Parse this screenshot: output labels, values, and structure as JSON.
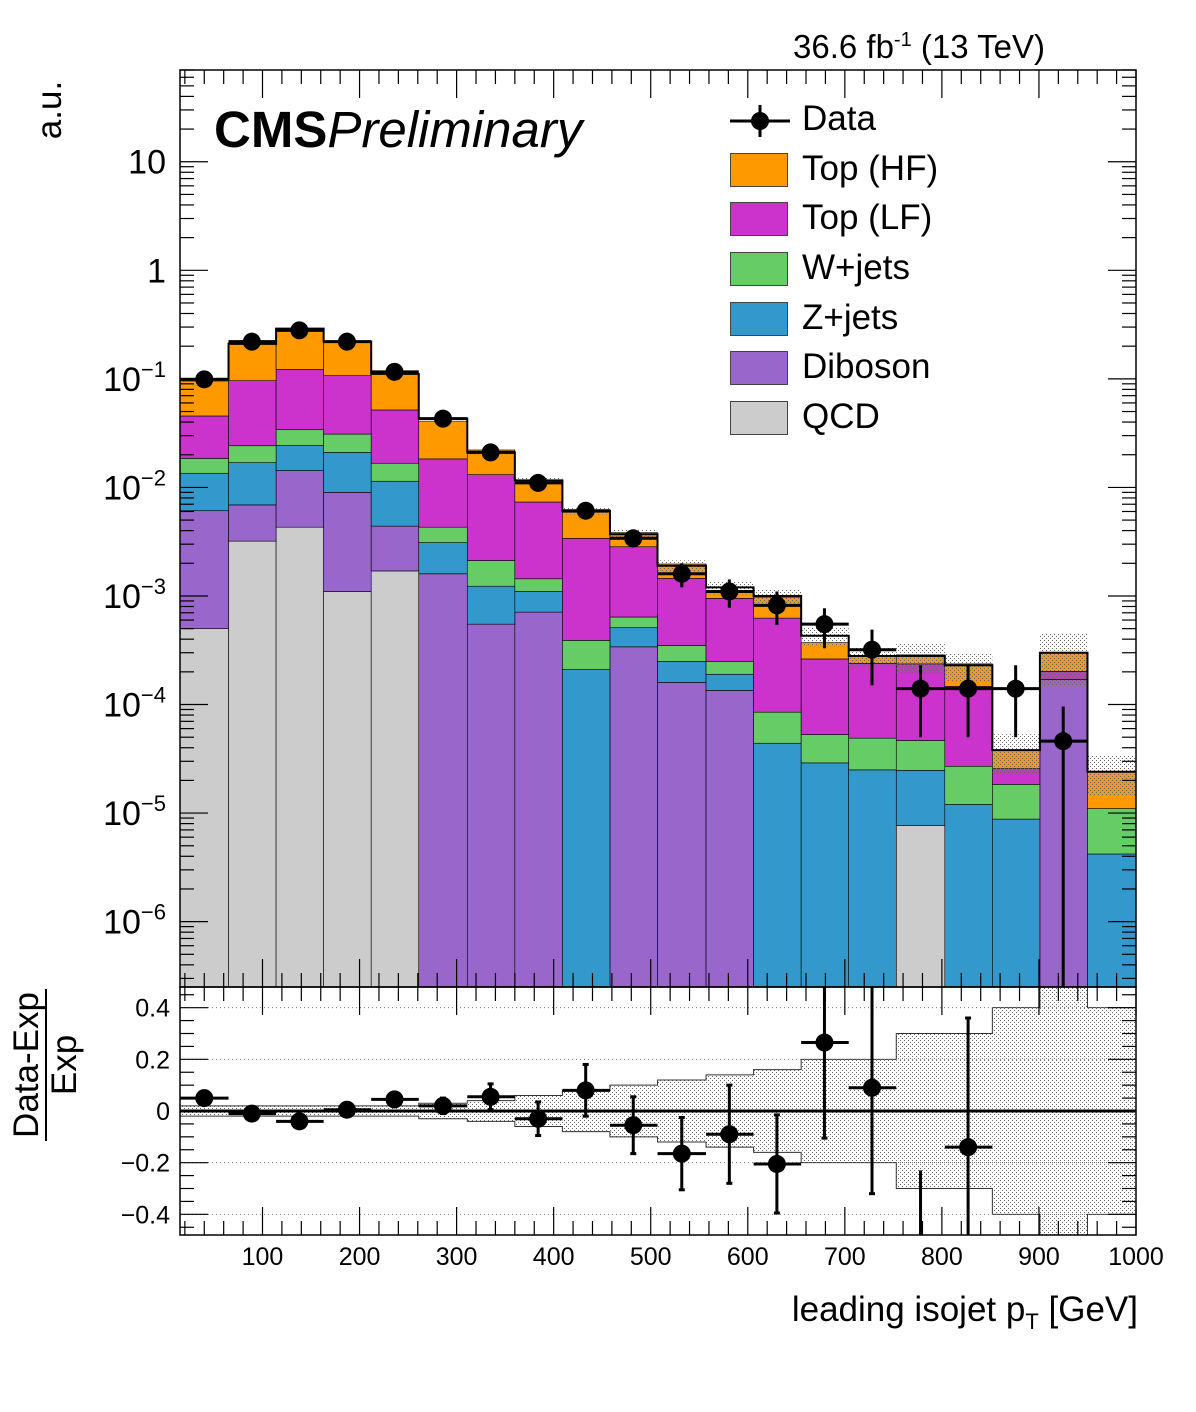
{
  "header": {
    "lumi_value": "36.6 fb",
    "lumi_exp": "-1",
    "lumi_energy": " (13 TeV)",
    "cms_bold": "CMS",
    "cms_italic": "Preliminary"
  },
  "axes": {
    "ylabel_top": "a.u.",
    "ylabel_ratio_num": "Data-Exp",
    "ylabel_ratio_den": "Exp",
    "xlabel_main": "leading isojet p",
    "xlabel_sub": "T",
    "xlabel_unit": " [GeV]"
  },
  "legend": [
    {
      "label": "Data",
      "kind": "data"
    },
    {
      "label": "Top (HF)",
      "kind": "fill",
      "color": "#ff9900"
    },
    {
      "label": "Top (LF)",
      "kind": "fill",
      "color": "#cc33cc"
    },
    {
      "label": "W+jets",
      "kind": "fill",
      "color": "#66cc66"
    },
    {
      "label": "Z+jets",
      "kind": "fill",
      "color": "#3399cc"
    },
    {
      "label": "Diboson",
      "kind": "fill",
      "color": "#9966cc"
    },
    {
      "label": "QCD",
      "kind": "fill",
      "color": "#cccccc"
    }
  ],
  "chart_data": [
    {
      "type": "bar",
      "stacked": true,
      "log_y": true,
      "xlim": [
        15,
        1000
      ],
      "ylim": [
        2.5e-07,
        70
      ],
      "x_edges": [
        15,
        65,
        114,
        163,
        212,
        261,
        311,
        360,
        409,
        458,
        507,
        557,
        606,
        655,
        704,
        753,
        803,
        852,
        901,
        950,
        1000
      ],
      "ytick_labels": [
        "10",
        "1",
        "10^{-1}",
        "10^{-2}",
        "10^{-3}",
        "10^{-4}",
        "10^{-5}",
        "10^{-6}"
      ],
      "ytick_values": [
        10,
        1,
        0.1,
        0.01,
        0.001,
        0.0001,
        1e-05,
        1e-06
      ],
      "series": [
        {
          "name": "QCD",
          "color": "#cccccc",
          "values": [
            0.0005,
            0.0032,
            0.0043,
            0.0011,
            0.0017,
            0,
            0,
            0,
            0,
            0,
            0,
            0,
            0,
            0,
            0,
            7.7e-06,
            0,
            0,
            0,
            0
          ]
        },
        {
          "name": "Diboson",
          "color": "#9966cc",
          "values": [
            0.0056,
            0.0037,
            0.01,
            0.0079,
            0.0027,
            0.0016,
            0.00055,
            0.00071,
            0,
            0.00034,
            0.00016,
            0.000135,
            0,
            0,
            0,
            0,
            0,
            0,
            0.00017,
            0
          ]
        },
        {
          "name": "Z+jets",
          "color": "#3399cc",
          "values": [
            0.0074,
            0.01,
            0.01,
            0.012,
            0.007,
            0.0015,
            0.00068,
            0.00039,
            0.00021,
            0.00017,
            9e-05,
            5.5e-05,
            4.4e-05,
            2.9e-05,
            2.5e-05,
            1.7e-05,
            1.2e-05,
            8.8e-06,
            0,
            4.2e-06
          ]
        },
        {
          "name": "W+jets",
          "color": "#66cc66",
          "values": [
            0.005,
            0.0073,
            0.0097,
            0.01,
            0.0053,
            0.0012,
            0.00089,
            0.00034,
            0.00018,
            0.00013,
            0.0001,
            6e-05,
            4.1e-05,
            2.4e-05,
            2.4e-05,
            2.2e-05,
            1.5e-05,
            9.6e-06,
            0,
            6.8e-06
          ]
        },
        {
          "name": "Top (LF)",
          "color": "#cc33cc",
          "values": [
            0.027,
            0.072,
            0.088,
            0.076,
            0.035,
            0.014,
            0.011,
            0.0059,
            0.003,
            0.0022,
            0.0011,
            0.0007,
            0.00054,
            0.00021,
            0.00019,
            0.00019,
            0.00012,
            7.3e-06,
            3.2e-05,
            0
          ]
        },
        {
          "name": "Top (HF)",
          "color": "#ff9900",
          "values": [
            0.05,
            0.12,
            0.17,
            0.11,
            0.06,
            0.022,
            0.009,
            0.0043,
            0.0025,
            0.001,
            0.00052,
            0.00016,
            0.00035,
            0.00011,
            4e-05,
            5e-05,
            9e-05,
            1.2e-05,
            0.0001,
            1.3e-05
          ]
        }
      ],
      "data_points": [
        {
          "x": 40,
          "y": 0.099,
          "yerr": [
            0.004,
            0.004
          ]
        },
        {
          "x": 89,
          "y": 0.22,
          "yerr": [
            0.006,
            0.006
          ]
        },
        {
          "x": 138,
          "y": 0.28,
          "yerr": [
            0.007,
            0.007
          ]
        },
        {
          "x": 187,
          "y": 0.22,
          "yerr": [
            0.006,
            0.006
          ]
        },
        {
          "x": 236,
          "y": 0.116,
          "yerr": [
            0.004,
            0.004
          ]
        },
        {
          "x": 286,
          "y": 0.043,
          "yerr": [
            0.002,
            0.002
          ]
        },
        {
          "x": 335,
          "y": 0.021,
          "yerr": [
            0.0015,
            0.0015
          ]
        },
        {
          "x": 384,
          "y": 0.011,
          "yerr": [
            0.0011,
            0.0011
          ]
        },
        {
          "x": 433,
          "y": 0.0061,
          "yerr": [
            0.0008,
            0.0008
          ]
        },
        {
          "x": 482,
          "y": 0.0034,
          "yerr": [
            0.0006,
            0.0006
          ]
        },
        {
          "x": 532,
          "y": 0.0016,
          "yerr": [
            0.0004,
            0.0004
          ]
        },
        {
          "x": 581,
          "y": 0.0011,
          "yerr": [
            0.00032,
            0.00032
          ]
        },
        {
          "x": 630,
          "y": 0.00082,
          "yerr": [
            0.00028,
            0.00028
          ]
        },
        {
          "x": 679,
          "y": 0.00055,
          "yerr": [
            0.00022,
            0.00022
          ]
        },
        {
          "x": 728,
          "y": 0.00032,
          "yerr": [
            0.00017,
            0.00017
          ]
        },
        {
          "x": 778,
          "y": 0.00014,
          "yerr": [
            9e-05,
            9e-05
          ]
        },
        {
          "x": 827,
          "y": 0.00014,
          "yerr": [
            9e-05,
            9e-05
          ]
        },
        {
          "x": 876,
          "y": 0.00014,
          "yerr": [
            9e-05,
            9e-05
          ]
        },
        {
          "x": 925,
          "y": 4.6e-05,
          "yerr": [
            4.59e-05,
            5e-05
          ]
        }
      ],
      "mc_uncertainty_total": [
        0.1,
        0.21,
        0.29,
        0.22,
        0.111,
        0.043,
        0.021,
        0.0116,
        0.0061,
        0.0037,
        0.0019,
        0.0012,
        0.001,
        0.00043,
        0.00028,
        0.00028,
        0.00023,
        3.8e-05,
        0.0003,
        2.4e-05
      ],
      "mc_uncertainty_rel": [
        0.02,
        0.02,
        0.02,
        0.02,
        0.02,
        0.03,
        0.04,
        0.06,
        0.08,
        0.1,
        0.12,
        0.14,
        0.16,
        0.2,
        0.2,
        0.3,
        0.3,
        0.4,
        0.5,
        0.4
      ]
    },
    {
      "type": "scatter",
      "xlim": [
        15,
        1000
      ],
      "ylim": [
        -0.48,
        0.48
      ],
      "xticks": [
        100,
        200,
        300,
        400,
        500,
        600,
        700,
        800,
        900,
        1000
      ],
      "yticks": [
        -0.4,
        -0.2,
        0,
        0.2,
        0.4
      ],
      "ytick_labels": [
        "−0.4",
        "−0.2",
        "0",
        "0.2",
        "0.4"
      ],
      "points": [
        {
          "x": 40,
          "y": 0.05,
          "yerr": 0.01
        },
        {
          "x": 89,
          "y": -0.01,
          "yerr": 0.01
        },
        {
          "x": 138,
          "y": -0.04,
          "yerr": 0.01
        },
        {
          "x": 187,
          "y": 0.005,
          "yerr": 0.01
        },
        {
          "x": 236,
          "y": 0.045,
          "yerr": 0.015
        },
        {
          "x": 286,
          "y": 0.02,
          "yerr": 0.03
        },
        {
          "x": 335,
          "y": 0.055,
          "yerr": 0.05
        },
        {
          "x": 384,
          "y": -0.03,
          "yerr": 0.065
        },
        {
          "x": 433,
          "y": 0.08,
          "yerr": 0.1
        },
        {
          "x": 482,
          "y": -0.055,
          "yerr": 0.11
        },
        {
          "x": 532,
          "y": -0.165,
          "yerr": 0.14
        },
        {
          "x": 581,
          "y": -0.09,
          "yerr": 0.19
        },
        {
          "x": 630,
          "y": -0.205,
          "yerr": 0.19
        },
        {
          "x": 679,
          "y": 0.265,
          "yerr": 0.37
        },
        {
          "x": 728,
          "y": 0.09,
          "yerr": 0.41
        },
        {
          "x": 827,
          "y": -0.14,
          "yerr": 0.5
        }
      ]
    }
  ]
}
